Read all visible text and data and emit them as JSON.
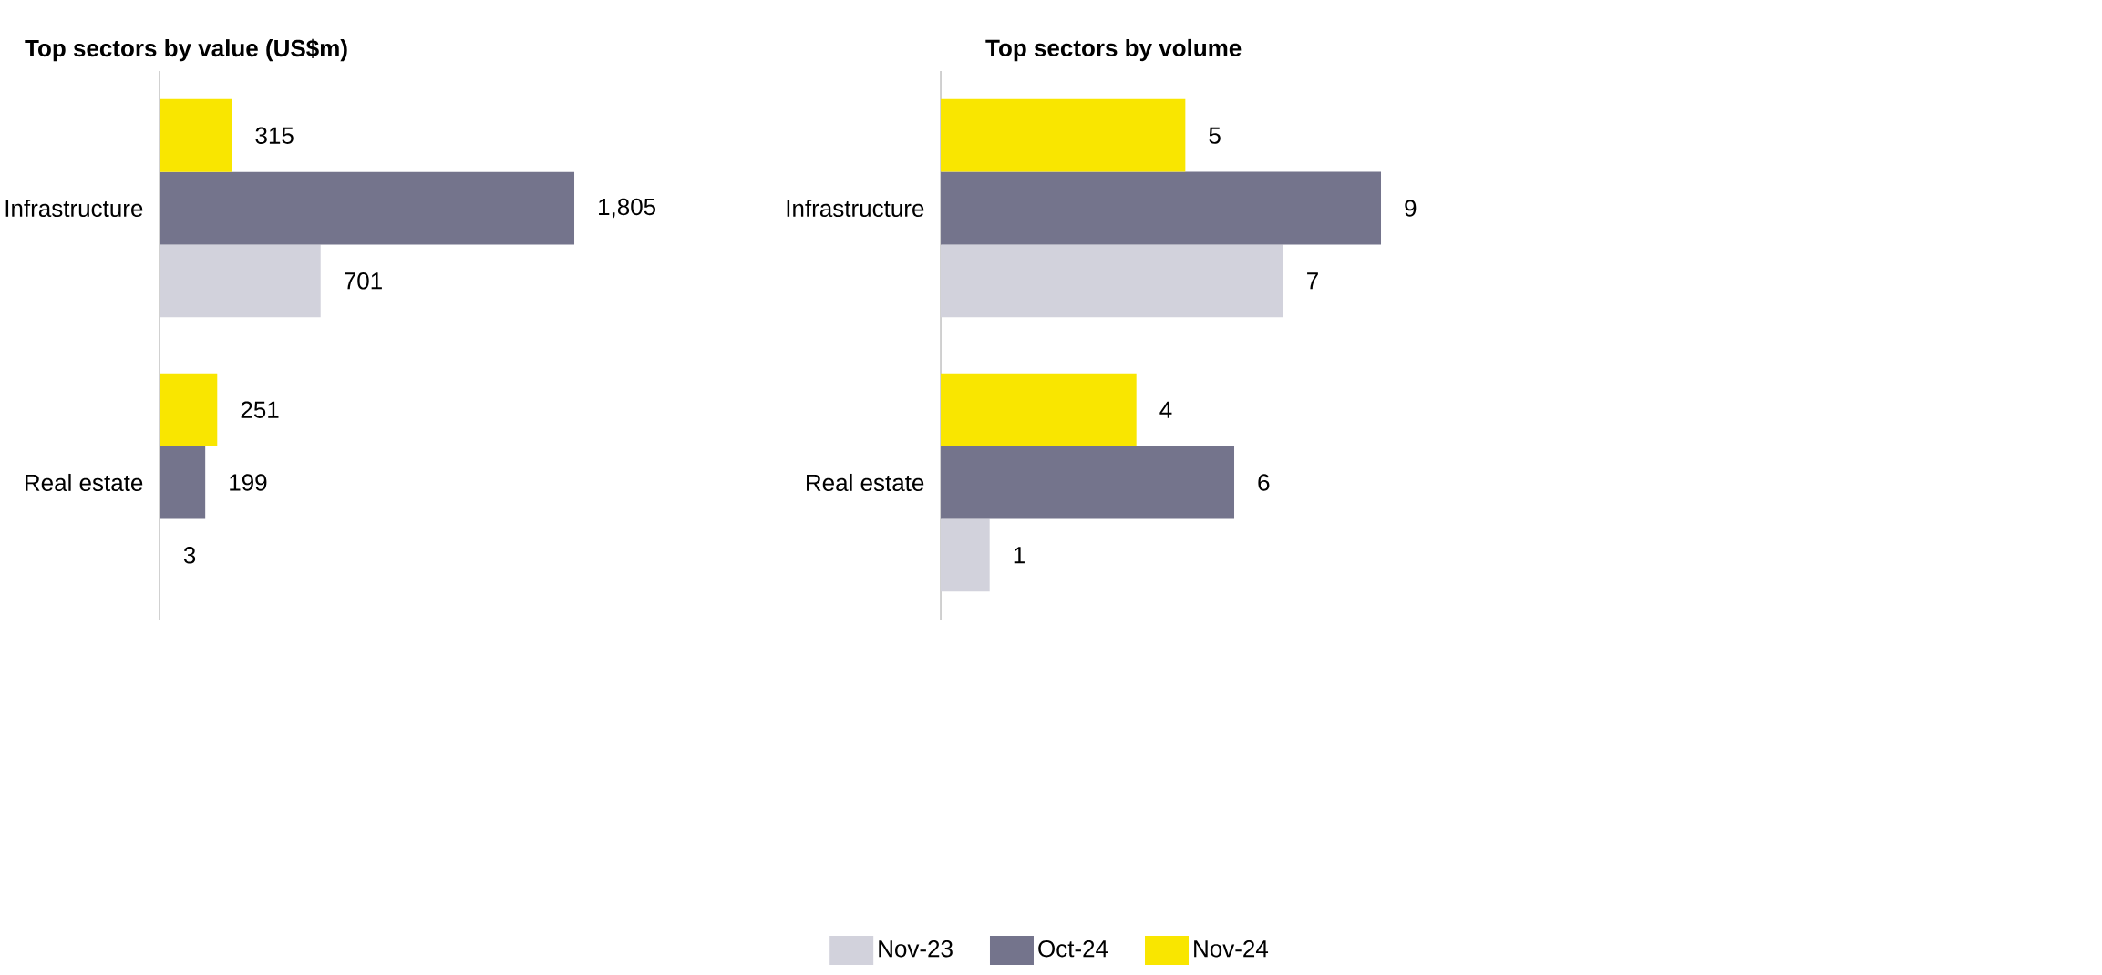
{
  "chart_data": [
    {
      "type": "bar",
      "orientation": "horizontal",
      "title": "Top sectors by value (US$m)",
      "categories": [
        "Infrastructure",
        "Real estate"
      ],
      "legend": "bottom",
      "series": [
        {
          "name": "Nov-23",
          "color": "#d2d2dc",
          "values": [
            701,
            3
          ],
          "value_labels": [
            "701",
            "3"
          ]
        },
        {
          "name": "Oct-24",
          "color": "#74748c",
          "values": [
            1805,
            199
          ],
          "value_labels": [
            "1,805",
            "199"
          ]
        },
        {
          "name": "Nov-24",
          "color": "#f9e600",
          "values": [
            315,
            251
          ],
          "value_labels": [
            "315",
            "251"
          ]
        }
      ]
    },
    {
      "type": "bar",
      "orientation": "horizontal",
      "title": "Top sectors by volume",
      "categories": [
        "Infrastructure",
        "Real estate"
      ],
      "series": [
        {
          "color": "#d2d2dc",
          "values": [
            7,
            1
          ],
          "value_labels": [
            "7",
            "1"
          ]
        },
        {
          "color": "#74748c",
          "values": [
            9,
            6
          ],
          "value_labels": [
            "9",
            "6"
          ]
        },
        {
          "color": "#f9e600",
          "values": [
            5,
            4
          ],
          "value_labels": [
            "5",
            "4"
          ]
        }
      ]
    }
  ]
}
